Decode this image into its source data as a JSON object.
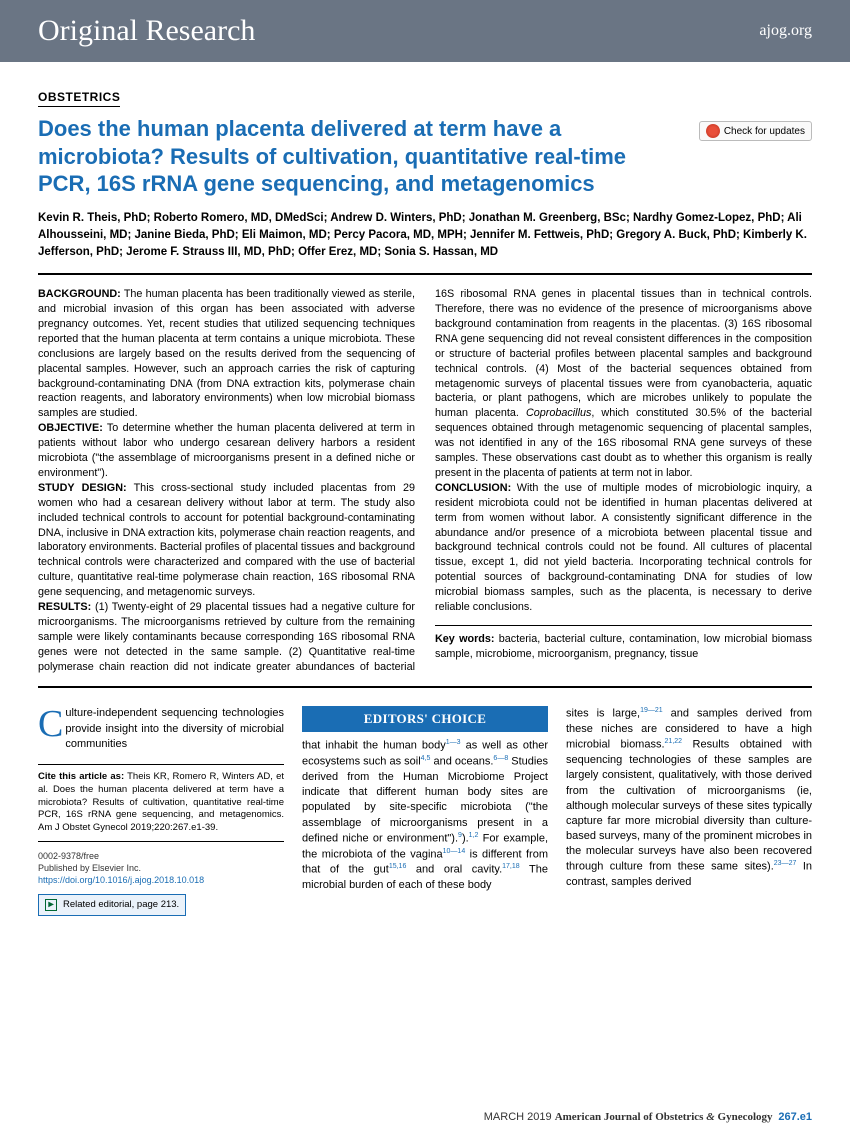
{
  "header": {
    "banner": "Original Research",
    "site": "ajog.org"
  },
  "section": "OBSTETRICS",
  "title": "Does the human placenta delivered at term have a microbiota? Results of cultivation, quantitative real-time PCR, 16S rRNA gene sequencing, and metagenomics",
  "check_updates": "Check for updates",
  "authors": "Kevin R. Theis, PhD; Roberto Romero, MD, DMedSci; Andrew D. Winters, PhD; Jonathan M. Greenberg, BSc; Nardhy Gomez-Lopez, PhD; Ali Alhousseini, MD; Janine Bieda, PhD; Eli Maimon, MD; Percy Pacora, MD, MPH; Jennifer M. Fettweis, PhD; Gregory A. Buck, PhD; Kimberly K. Jefferson, PhD; Jerome F. Strauss III, MD, PhD; Offer Erez, MD; Sonia S. Hassan, MD",
  "abstract": {
    "background_label": "BACKGROUND:",
    "background": " The human placenta has been traditionally viewed as sterile, and microbial invasion of this organ has been associated with adverse pregnancy outcomes. Yet, recent studies that utilized sequencing techniques reported that the human placenta at term contains a unique microbiota. These conclusions are largely based on the results derived from the sequencing of placental samples. However, such an approach carries the risk of capturing background-contaminating DNA (from DNA extraction kits, polymerase chain reaction reagents, and laboratory environments) when low microbial biomass samples are studied.",
    "objective_label": "OBJECTIVE:",
    "objective": " To determine whether the human placenta delivered at term in patients without labor who undergo cesarean delivery harbors a resident microbiota (\"the assemblage of microorganisms present in a defined niche or environment\").",
    "design_label": "STUDY DESIGN:",
    "design": " This cross-sectional study included placentas from 29 women who had a cesarean delivery without labor at term. The study also included technical controls to account for potential background-contaminating DNA, inclusive in DNA extraction kits, polymerase chain reaction reagents, and laboratory environments. Bacterial profiles of placental tissues and background technical controls were characterized and compared with the use of bacterial culture, quantitative real-time polymerase chain reaction, 16S ribosomal RNA gene sequencing, and metagenomic surveys.",
    "results_label": "RESULTS:",
    "results": " (1) Twenty-eight of 29 placental tissues had a negative culture for microorganisms. The microorganisms retrieved by culture from the remaining sample were likely contaminants because corresponding 16S ribosomal RNA genes were not detected in the same sample. (2) Quantitative real-time polymerase chain reaction did not indicate greater abundances of bacterial 16S ribosomal RNA genes in placental tissues than in technical controls. Therefore, there was no evidence of the presence of microorganisms above background contamination from reagents in the placentas. (3) 16S ribosomal RNA gene sequencing did not reveal consistent differences in the composition or structure of bacterial profiles between placental samples and background technical controls. (4) Most of the bacterial sequences obtained from metagenomic surveys of placental tissues were from cyanobacteria, aquatic bacteria, or plant pathogens, which are microbes unlikely to populate the human placenta. ",
    "copro": "Coprobacillus",
    "results2": ", which constituted 30.5% of the bacterial sequences obtained through metagenomic sequencing of placental samples, was not identified in any of the 16S ribosomal RNA gene surveys of these samples. These observations cast doubt as to whether this organism is really present in the placenta of patients at term not in labor.",
    "conclusion_label": "CONCLUSION:",
    "conclusion": " With the use of multiple modes of microbiologic inquiry, a resident microbiota could not be identified in human placentas delivered at term from women without labor. A consistently significant difference in the abundance and/or presence of a microbiota between placental tissue and background technical controls could not be found. All cultures of placental tissue, except 1, did not yield bacteria. Incorporating technical controls for potential sources of background-contaminating DNA for studies of low microbial biomass samples, such as the placenta, is necessary to derive reliable conclusions.",
    "keywords_label": "Key words:",
    "keywords": " bacteria, bacterial culture, contamination, low microbial biomass sample, microbiome, microorganism, pregnancy, tissue"
  },
  "editors_choice": "EDITORS' CHOICE",
  "body": {
    "col1a": "ulture-independent sequencing technologies provide insight into the diversity of microbial communities",
    "cite_label": "Cite this article as:",
    "cite": " Theis KR, Romero R, Winters AD, et al. Does the human placenta delivered at term have a microbiota? Results of cultivation, quantitative real-time PCR, 16S rRNA gene sequencing, and metagenomics. Am J Obstet Gynecol 2019;220:267.e1-39.",
    "meta1": "0002-9378/free",
    "meta2": "Published by Elsevier Inc.",
    "doi": "https://doi.org/10.1016/j.ajog.2018.10.018",
    "related": "Related editorial, page 213.",
    "col2": "that inhabit the human body",
    "col2b": " as well as other ecosystems such as soil",
    "col2c": " and oceans.",
    "col2d": " Studies derived from the Human Microbiome Project indicate that different human body sites are populated by site-specific microbiota (\"the assemblage of microorganisms present in a defined niche or environment\").",
    "col2e": " For example, the microbiota of the vagina",
    "col2f": " is different from that of the gut",
    "col2g": " and oral cavity.",
    "col2h": " The microbial burden of each of these body",
    "col3a": "sites is large,",
    "col3b": " and samples derived from these niches are considered to have a high microbial biomass.",
    "col3c": " Results obtained with sequencing technologies of these samples are largely consistent, qualitatively, with those derived from the cultivation of microorganisms (ie, although molecular surveys of these sites typically capture far more microbial diversity than culture-based surveys, many of the prominent microbes in the molecular surveys have also been recovered through culture from these same sites).",
    "col3d": " In contrast, samples derived"
  },
  "footer": {
    "date": "MARCH 2019",
    "journal": "American Journal of Obstetrics",
    "journal2": "Gynecology",
    "page": "267.e1"
  },
  "colors": {
    "brand_blue": "#1a6db4",
    "header_gray": "#6a7584"
  }
}
